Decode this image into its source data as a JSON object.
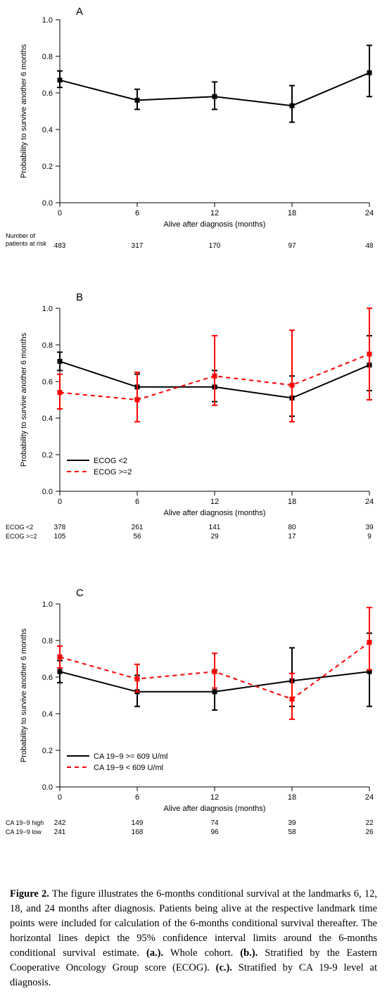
{
  "figure": {
    "caption_lead": "Figure 2.",
    "caption_body": " The figure illustrates the 6-months conditional survival at the landmarks 6, 12, 18, and 24 months after diagnosis. Patients being alive at the respective landmark time points were included for calculation of the 6-months conditional survival thereafter. The horizontal lines depict the 95% confidence interval limits around the 6-months conditional survival estimate. ",
    "caption_a": "(a.).",
    "caption_a_text": " Whole cohort. ",
    "caption_b": "(b.).",
    "caption_b_text": " Stratified by the Eastern Cooperative Oncology Group score (ECOG). ",
    "caption_c": "(c.).",
    "caption_c_text": " Stratified by CA 19-9 level at diagnosis."
  },
  "shared": {
    "x_ticks": [
      0,
      6,
      12,
      18,
      24
    ],
    "y_ticks": [
      0.0,
      0.2,
      0.4,
      0.6,
      0.8,
      1.0
    ],
    "y_tick_labels": [
      "0.0",
      "0.2",
      "0.4",
      "0.6",
      "0.8",
      "1.0"
    ],
    "x_axis_label": "Alive after diagnosis (months)",
    "y_axis_label": "Probability to survive another 6 months",
    "axis_color": "#000000",
    "bg_color": "#ffffff",
    "marker_size": 7,
    "line_width": 2,
    "err_cap": 8,
    "tick_fontsize": 11,
    "axis_label_fontsize": 11
  },
  "panelA": {
    "label": "A",
    "series": [
      {
        "name": "whole",
        "color": "#000000",
        "dash": "",
        "x": [
          0,
          6,
          12,
          18,
          24
        ],
        "y": [
          0.67,
          0.56,
          0.58,
          0.53,
          0.71
        ],
        "lo": [
          0.63,
          0.51,
          0.51,
          0.44,
          0.58
        ],
        "hi": [
          0.72,
          0.62,
          0.66,
          0.64,
          0.86
        ]
      }
    ],
    "risk_header": "Number of\npatients at risk",
    "risk_rows": [
      {
        "label": "",
        "vals": [
          483,
          317,
          170,
          97,
          48
        ]
      }
    ]
  },
  "panelB": {
    "label": "B",
    "legend": [
      {
        "text": "ECOG <2",
        "color": "#000000",
        "dash": ""
      },
      {
        "text": "ECOG >=2",
        "color": "#ff0000",
        "dash": "6,5"
      }
    ],
    "series": [
      {
        "name": "ecog_lt2",
        "color": "#000000",
        "dash": "",
        "x": [
          0,
          6,
          12,
          18,
          24
        ],
        "y": [
          0.71,
          0.57,
          0.57,
          0.51,
          0.69
        ],
        "lo": [
          0.66,
          0.51,
          0.49,
          0.41,
          0.55
        ],
        "hi": [
          0.76,
          0.64,
          0.66,
          0.63,
          0.85
        ]
      },
      {
        "name": "ecog_ge2",
        "color": "#ff0000",
        "dash": "6,5",
        "x": [
          0,
          6,
          12,
          18,
          24
        ],
        "y": [
          0.54,
          0.5,
          0.63,
          0.58,
          0.75
        ],
        "lo": [
          0.45,
          0.38,
          0.47,
          0.38,
          0.5
        ],
        "hi": [
          0.64,
          0.65,
          0.85,
          0.88,
          1.0
        ]
      }
    ],
    "risk_rows": [
      {
        "label": "ECOG <2",
        "vals": [
          378,
          261,
          141,
          80,
          39
        ]
      },
      {
        "label": "ECOG >=2",
        "vals": [
          105,
          56,
          29,
          17,
          9
        ]
      }
    ]
  },
  "panelC": {
    "label": "C",
    "legend": [
      {
        "text": "CA 19−9 >= 609 U/ml",
        "color": "#000000",
        "dash": ""
      },
      {
        "text": "CA 19−9 < 609 U/ml",
        "color": "#ff0000",
        "dash": "6,5"
      }
    ],
    "series": [
      {
        "name": "ca_high",
        "color": "#000000",
        "dash": "",
        "x": [
          0,
          6,
          12,
          18,
          24
        ],
        "y": [
          0.63,
          0.52,
          0.52,
          0.58,
          0.63
        ],
        "lo": [
          0.57,
          0.44,
          0.42,
          0.44,
          0.44
        ],
        "hi": [
          0.69,
          0.61,
          0.64,
          0.76,
          0.84
        ]
      },
      {
        "name": "ca_low",
        "color": "#ff0000",
        "dash": "6,5",
        "x": [
          0,
          6,
          12,
          18,
          24
        ],
        "y": [
          0.71,
          0.59,
          0.63,
          0.48,
          0.79
        ],
        "lo": [
          0.65,
          0.52,
          0.54,
          0.37,
          0.64
        ],
        "hi": [
          0.77,
          0.67,
          0.73,
          0.62,
          0.98
        ]
      }
    ],
    "risk_rows": [
      {
        "label": "CA 19−9 high",
        "vals": [
          242,
          149,
          74,
          39,
          22
        ]
      },
      {
        "label": "CA 19−9 low",
        "vals": [
          241,
          168,
          96,
          58,
          26
        ]
      }
    ]
  }
}
